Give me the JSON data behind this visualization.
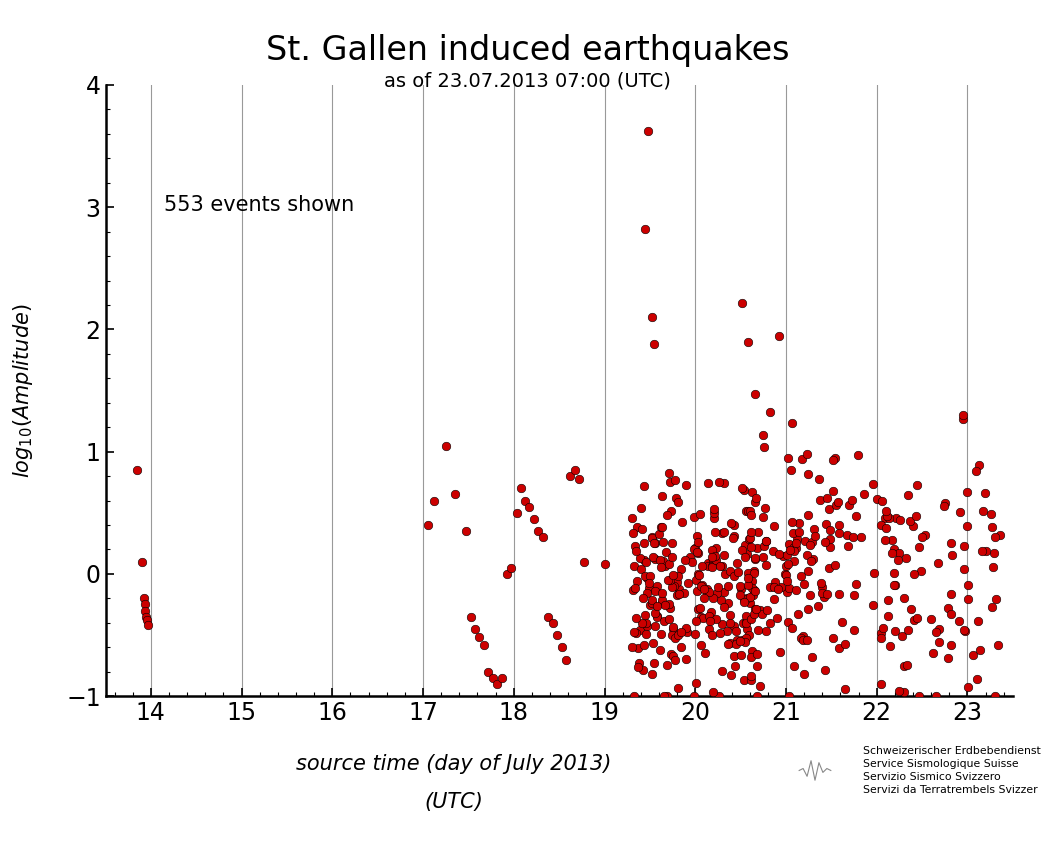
{
  "title": "St. Gallen induced earthquakes",
  "subtitle": "as of 23.07.2013 07:00 (UTC)",
  "xlabel_line1": "source time (day of July 2013)",
  "xlabel_line2": "(UTC)",
  "ylabel": "log$_{10}$(Amplitude)",
  "annotation": "553 events shown",
  "xlim": [
    13.5,
    23.5
  ],
  "ylim": [
    -1,
    4
  ],
  "xticks": [
    14,
    15,
    16,
    17,
    18,
    19,
    20,
    21,
    22,
    23
  ],
  "yticks": [
    -1,
    0,
    1,
    2,
    3,
    4
  ],
  "vlines": [
    14,
    15,
    16,
    17,
    18,
    19,
    20,
    21,
    22,
    23
  ],
  "dot_color": "#cc0000",
  "dot_edgecolor": "#000000",
  "dot_size": 38,
  "background_color": "#ffffff",
  "logo_text_lines": [
    "Schweizerischer Erdbebendienst",
    "Service Sismologique Suisse",
    "Servizio Sismico Svizzero",
    "Servizi da Terratrembels Svizzer"
  ],
  "logo_box_color": "#cc0000",
  "seed": 42,
  "early_events": [
    [
      13.85,
      0.85
    ],
    [
      13.9,
      0.1
    ],
    [
      13.92,
      -0.2
    ],
    [
      13.93,
      -0.25
    ],
    [
      13.94,
      -0.3
    ],
    [
      13.95,
      -0.35
    ],
    [
      13.96,
      -0.38
    ],
    [
      13.97,
      -0.42
    ]
  ],
  "mid_events": [
    [
      17.05,
      0.4
    ],
    [
      17.12,
      0.6
    ],
    [
      17.25,
      1.05
    ],
    [
      17.35,
      0.65
    ],
    [
      17.47,
      0.35
    ],
    [
      17.53,
      -0.35
    ],
    [
      17.57,
      -0.45
    ],
    [
      17.62,
      -0.52
    ],
    [
      17.67,
      -0.58
    ],
    [
      17.72,
      -0.8
    ],
    [
      17.77,
      -0.85
    ],
    [
      17.82,
      -0.9
    ],
    [
      17.87,
      -0.85
    ],
    [
      17.92,
      0.0
    ],
    [
      17.97,
      0.05
    ],
    [
      18.03,
      0.5
    ],
    [
      18.08,
      0.7
    ],
    [
      18.12,
      0.6
    ],
    [
      18.17,
      0.55
    ],
    [
      18.22,
      0.45
    ],
    [
      18.27,
      0.35
    ],
    [
      18.32,
      0.3
    ],
    [
      18.38,
      -0.35
    ],
    [
      18.43,
      -0.4
    ],
    [
      18.48,
      -0.5
    ],
    [
      18.53,
      -0.6
    ],
    [
      18.58,
      -0.7
    ],
    [
      18.62,
      0.8
    ],
    [
      18.67,
      0.85
    ],
    [
      18.72,
      0.78
    ],
    [
      18.77,
      0.1
    ],
    [
      19.0,
      0.08
    ]
  ],
  "special_high": [
    [
      19.45,
      2.82
    ],
    [
      19.48,
      3.62
    ],
    [
      19.52,
      2.1
    ],
    [
      19.55,
      1.88
    ],
    [
      20.52,
      2.22
    ],
    [
      20.58,
      1.9
    ],
    [
      20.92,
      1.95
    ],
    [
      21.02,
      0.95
    ]
  ]
}
